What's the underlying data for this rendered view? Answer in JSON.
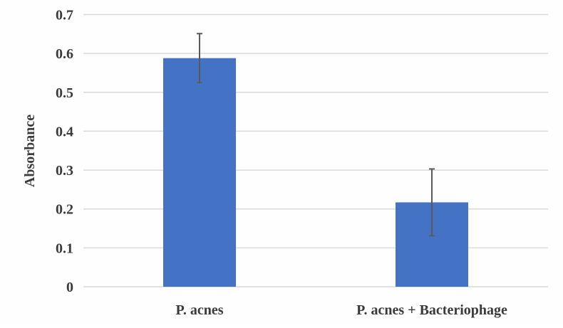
{
  "chart_data": {
    "type": "bar",
    "categories": [
      "P. acnes",
      "P. acnes + Bacteriophage"
    ],
    "values": [
      0.588,
      0.217
    ],
    "error": [
      0.063,
      0.086
    ],
    "title": "",
    "xlabel": "",
    "ylabel": "Absorbance",
    "ylim": [
      0,
      0.7
    ],
    "yticks": [
      "0",
      "0.1",
      "0.2",
      "0.3",
      "0.4",
      "0.5",
      "0.6",
      "0.7"
    ],
    "grid": true,
    "bar_color": "#4472C4",
    "error_color": "#595959",
    "grid_color": "#d9d9d9"
  }
}
